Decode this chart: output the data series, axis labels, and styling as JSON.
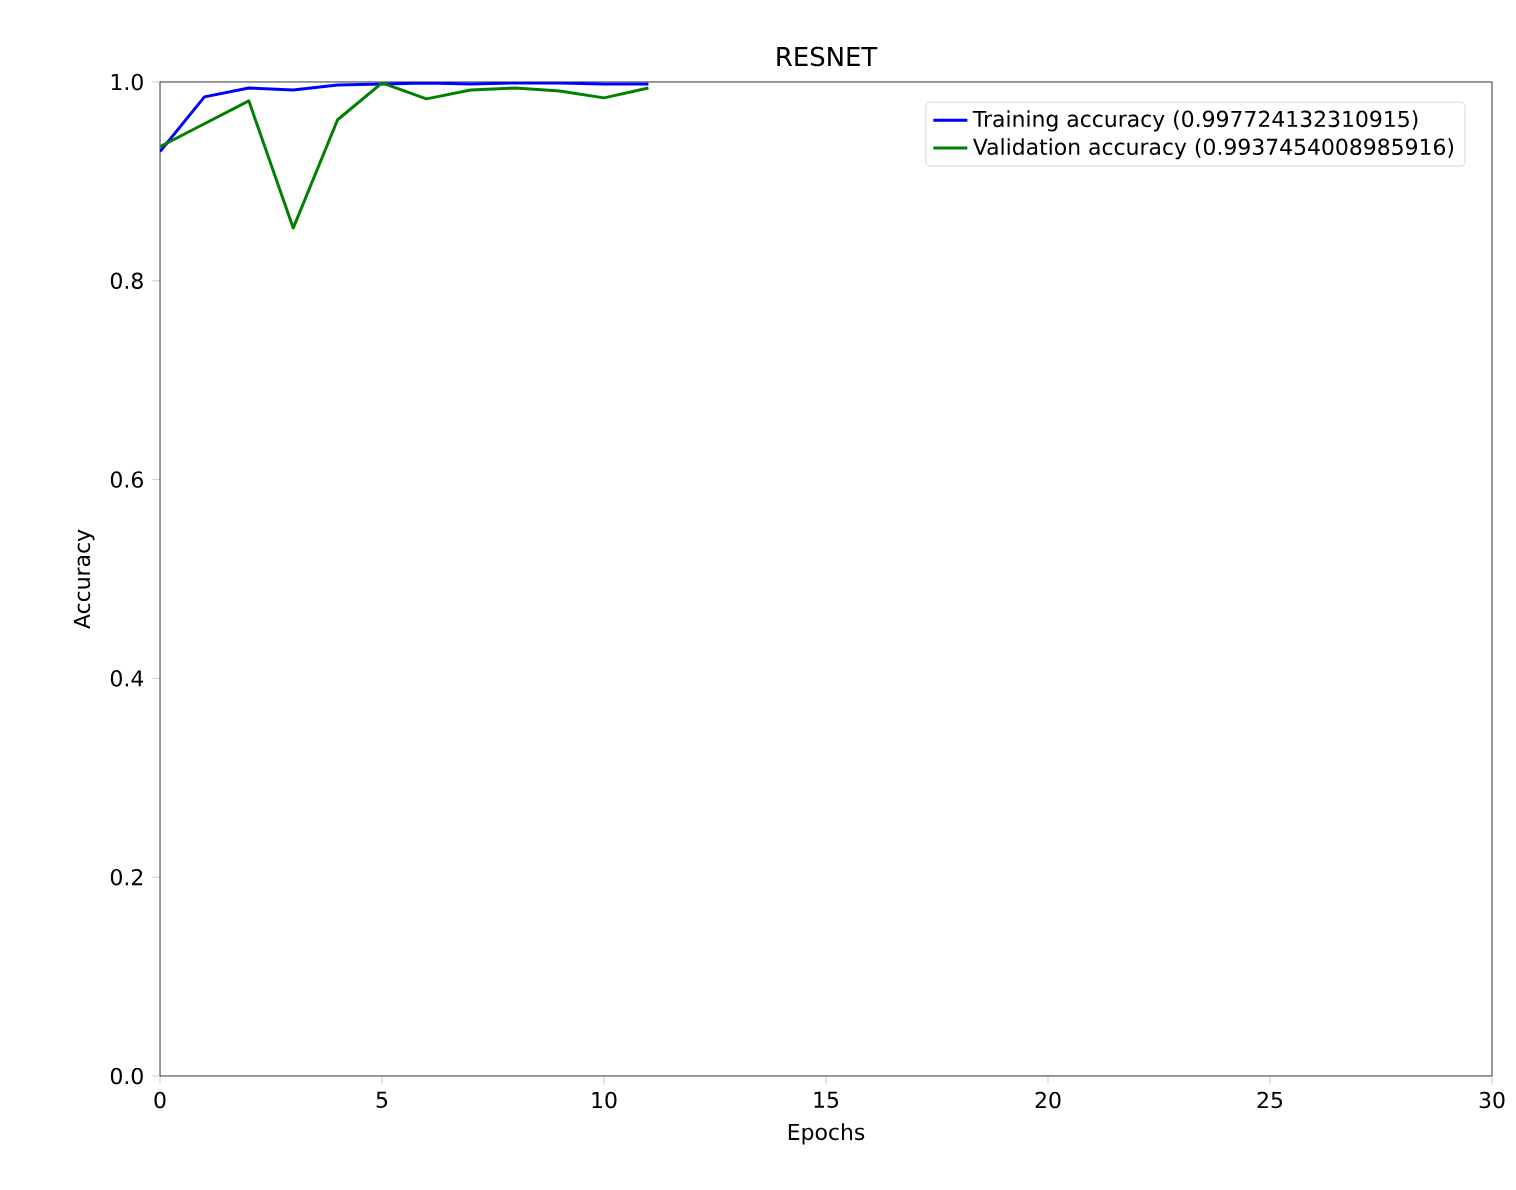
{
  "chart_data": {
    "type": "line",
    "title": "RESNET",
    "xlabel": "Epochs",
    "ylabel": "Accuracy",
    "x": [
      0,
      1,
      2,
      3,
      4,
      5,
      6,
      7,
      8,
      9,
      10,
      11
    ],
    "series": [
      {
        "name": "Training accuracy (0.997724132310915)",
        "color": "#0000ff",
        "values": [
          0.93,
          0.985,
          0.994,
          0.992,
          0.997,
          0.998,
          0.999,
          0.998,
          0.999,
          0.999,
          0.998,
          0.998
        ]
      },
      {
        "name": "Validation accuracy (0.9937454008985916)",
        "color": "#008000",
        "values": [
          0.935,
          0.958,
          0.981,
          0.853,
          0.962,
          0.999,
          0.983,
          0.992,
          0.994,
          0.991,
          0.984,
          0.994
        ]
      }
    ],
    "xlim": [
      0,
      30
    ],
    "ylim": [
      0,
      1.0
    ],
    "xticks": [
      0,
      5,
      10,
      15,
      20,
      25,
      30
    ],
    "yticks": [
      {
        "value": 0,
        "label": "0.0"
      },
      {
        "value": 0.2,
        "label": "0.2"
      },
      {
        "value": 0.4,
        "label": "0.4"
      },
      {
        "value": 0.6,
        "label": "0.6"
      },
      {
        "value": 0.8,
        "label": "0.8"
      },
      {
        "value": 1.0,
        "label": "1.0"
      }
    ],
    "legend": "top right",
    "grid": false,
    "marker": "none",
    "line_style": "solid"
  }
}
